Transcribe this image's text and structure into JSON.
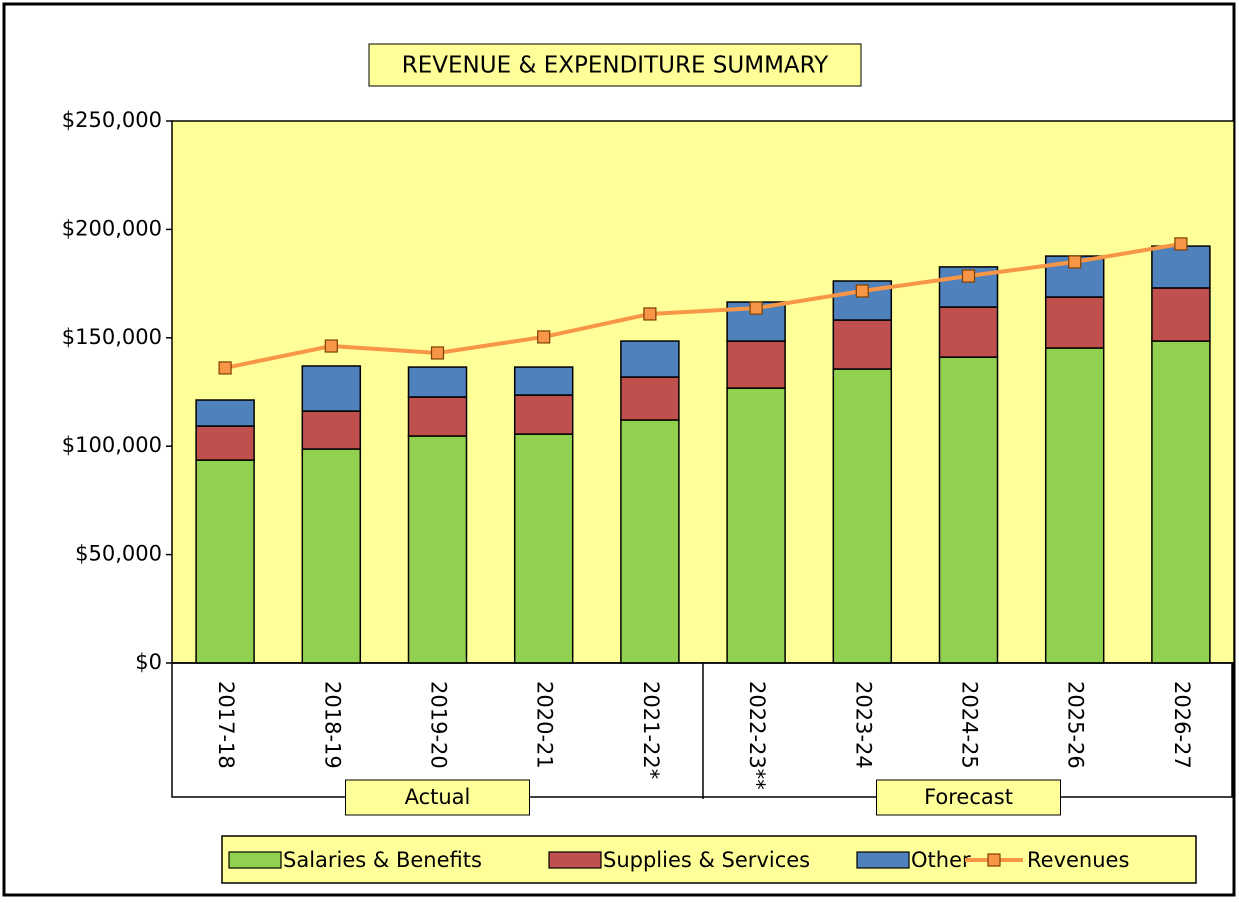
{
  "chart_data": {
    "type": "bar",
    "stacked": true,
    "title": "REVENUE & EXPENDITURE SUMMARY",
    "categories": [
      "2017-18",
      "2018-19",
      "2019-20",
      "2020-21",
      "2021-22*",
      "2022-23**",
      "2023-24",
      "2024-25",
      "2025-26",
      "2026-27"
    ],
    "groups": [
      {
        "name": "Actual",
        "count": 5
      },
      {
        "name": "Forecast",
        "count": 5
      }
    ],
    "series": [
      {
        "name": "Salaries & Benefits",
        "color": "#92d050",
        "values": [
          93600,
          98700,
          104700,
          105600,
          112100,
          126800,
          135600,
          141100,
          145300,
          148500
        ]
      },
      {
        "name": "Supplies & Services",
        "color": "#c0504d",
        "values": [
          15700,
          17500,
          18000,
          18000,
          19800,
          21700,
          22600,
          23100,
          23500,
          24500
        ]
      },
      {
        "name": "Other",
        "color": "#4f81bd",
        "values": [
          12000,
          20800,
          13800,
          12900,
          16600,
          18000,
          18000,
          18500,
          18900,
          19300
        ]
      },
      {
        "name": "Revenues",
        "type": "line",
        "color": "#f79646",
        "values": [
          136100,
          146200,
          143000,
          150400,
          161000,
          163700,
          171600,
          178500,
          185000,
          193300
        ]
      }
    ],
    "ylim": [
      0,
      250000
    ],
    "yticks": [
      {
        "value": 0,
        "label": "$0"
      },
      {
        "value": 50000,
        "label": "$50,000"
      },
      {
        "value": 100000,
        "label": "$100,000"
      },
      {
        "value": 150000,
        "label": "$150,000"
      },
      {
        "value": 200000,
        "label": "$200,000"
      },
      {
        "value": 250000,
        "label": "$250,000"
      }
    ],
    "plot_color": "#ffff99",
    "legend": "bottom"
  }
}
